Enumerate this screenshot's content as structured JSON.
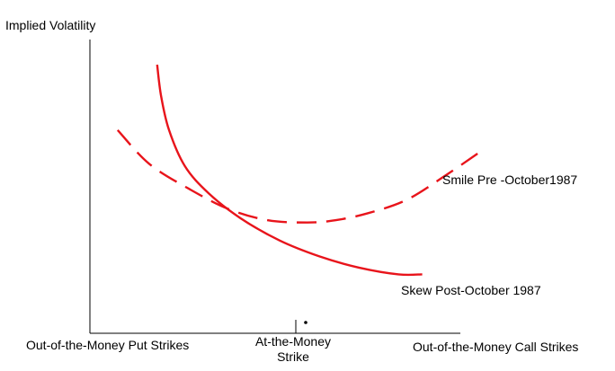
{
  "chart_data": {
    "type": "line",
    "title": "",
    "ylabel": "Implied Volatility",
    "xlabel": "",
    "x_tick_labels": {
      "left": "Out-of-the-Money Put Strikes",
      "center_line1": "At-the-Money",
      "center_line2": "Strike",
      "right": "Out-of-the-Money Call Strikes"
    },
    "annotations": {
      "dashed_curve": "Smile Pre -October1987",
      "solid_curve": "Skew Post-October 1987"
    },
    "line_color": "#e8141b",
    "axis_color": "#000000",
    "grid": false,
    "legend": "none",
    "xlim": [
      0,
      100
    ],
    "ylim": [
      0,
      100
    ],
    "series": [
      {
        "style": "dashed",
        "x": [
          7,
          15,
          25,
          35,
          45,
          55,
          62,
          70,
          80,
          90,
          100
        ],
        "y": [
          71,
          56,
          45,
          36,
          31,
          30,
          31,
          34,
          40,
          51,
          63
        ]
      },
      {
        "style": "solid",
        "x": [
          17,
          18,
          20,
          24,
          30,
          38,
          48,
          58,
          68,
          78,
          84
        ],
        "y": [
          100,
          86,
          71,
          55,
          43,
          32,
          22,
          15,
          10,
          7,
          7
        ]
      }
    ]
  }
}
